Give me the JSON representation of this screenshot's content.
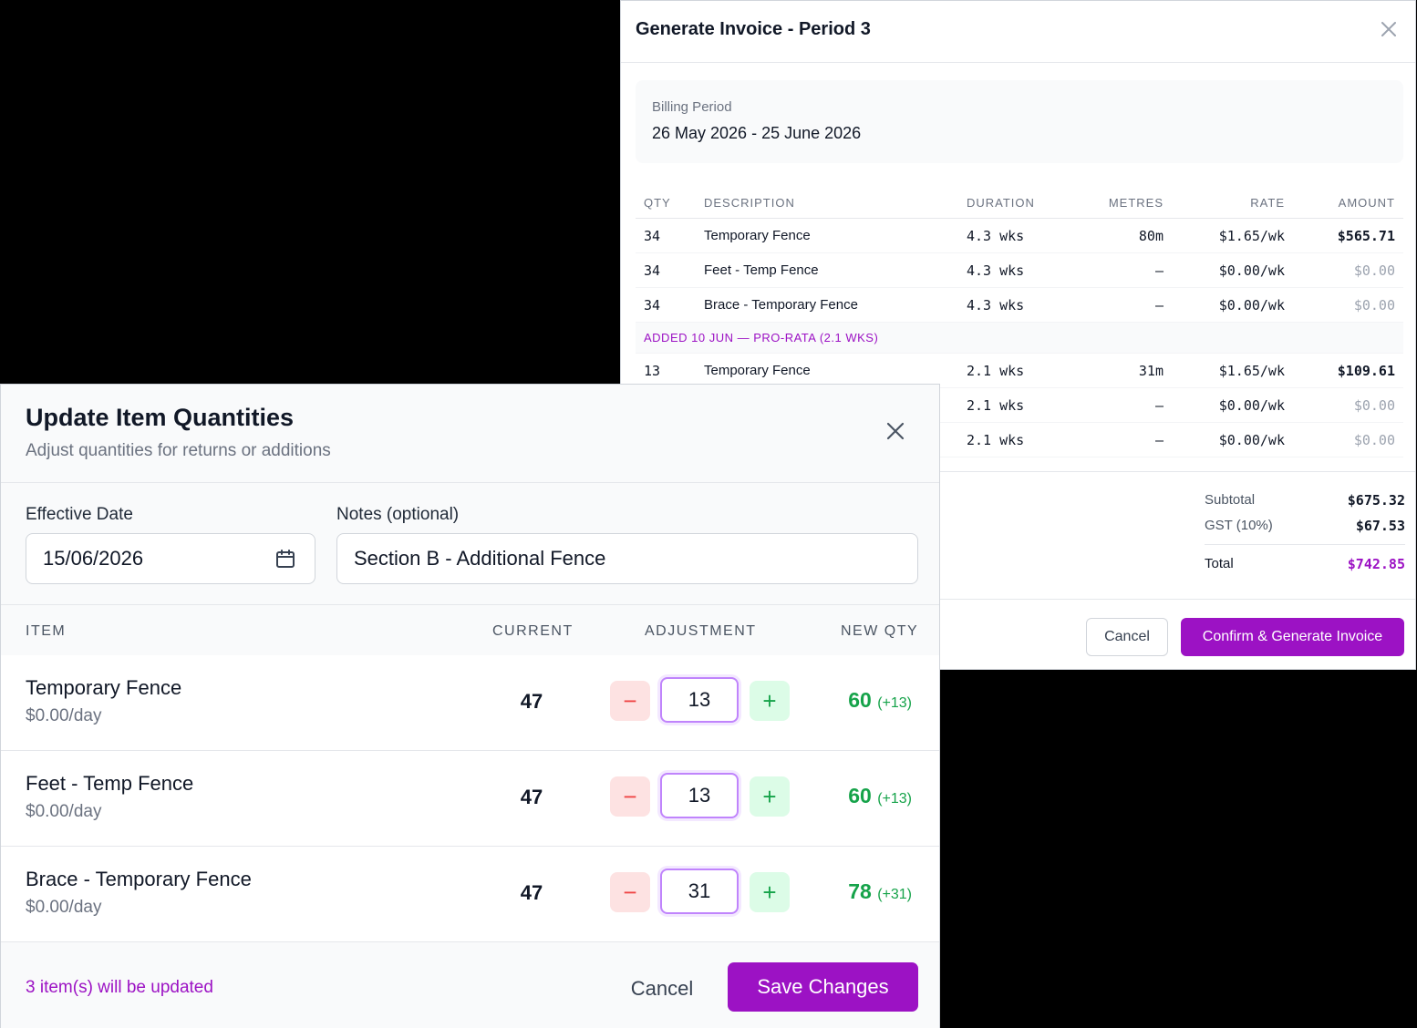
{
  "invoice": {
    "title": "Generate Invoice - Period 3",
    "billing_period_label": "Billing Period",
    "billing_period_value": "26 May 2026 - 25 June 2026",
    "columns": [
      "QTY",
      "DESCRIPTION",
      "DURATION",
      "METRES",
      "RATE",
      "AMOUNT"
    ],
    "rows": [
      {
        "qty": "34",
        "description": "Temporary Fence",
        "duration": "4.3 wks",
        "metres": "80m",
        "rate": "$1.65/wk",
        "amount": "$565.71"
      },
      {
        "qty": "34",
        "description": "Feet - Temp Fence",
        "duration": "4.3 wks",
        "metres": "—",
        "rate": "$0.00/wk",
        "amount": "$0.00"
      },
      {
        "qty": "34",
        "description": "Brace - Temporary Fence",
        "duration": "4.3 wks",
        "metres": "—",
        "rate": "$0.00/wk",
        "amount": "$0.00"
      }
    ],
    "group_label": "ADDED 10 JUN — PRO-RATA (2.1 WKS)",
    "group_rows": [
      {
        "qty": "13",
        "description": "Temporary Fence",
        "duration": "2.1 wks",
        "metres": "31m",
        "rate": "$1.65/wk",
        "amount": "$109.61"
      },
      {
        "qty": "",
        "description": "",
        "duration": "2.1 wks",
        "metres": "—",
        "rate": "$0.00/wk",
        "amount": "$0.00"
      },
      {
        "qty": "",
        "description": "",
        "duration": "2.1 wks",
        "metres": "—",
        "rate": "$0.00/wk",
        "amount": "$0.00"
      }
    ],
    "subtotal_label": "Subtotal",
    "subtotal_value": "$675.32",
    "gst_label": "GST (10%)",
    "gst_value": "$67.53",
    "total_label": "Total",
    "total_value": "$742.85",
    "cancel_label": "Cancel",
    "confirm_label": "Confirm & Generate Invoice",
    "accent_color": "#9c12c4"
  },
  "update": {
    "title": "Update Item Quantities",
    "subtitle": "Adjust quantities for returns or additions",
    "effective_date_label": "Effective Date",
    "effective_date_value": "15/06/2026",
    "notes_label": "Notes (optional)",
    "notes_value": "Section B - Additional Fence",
    "columns": {
      "item": "ITEM",
      "current": "CURRENT",
      "adjustment": "ADJUSTMENT",
      "new_qty": "NEW QTY"
    },
    "items": [
      {
        "name": "Temporary Fence",
        "price": "$0.00/day",
        "current": "47",
        "adjustment": "13",
        "new_qty": "60",
        "delta": "(+13)"
      },
      {
        "name": "Feet - Temp Fence",
        "price": "$0.00/day",
        "current": "47",
        "adjustment": "13",
        "new_qty": "60",
        "delta": "(+13)"
      },
      {
        "name": "Brace - Temporary Fence",
        "price": "$0.00/day",
        "current": "47",
        "adjustment": "31",
        "new_qty": "78",
        "delta": "(+31)"
      }
    ],
    "minus_symbol": "−",
    "plus_symbol": "+",
    "status_text": "3 item(s) will be updated",
    "cancel_label": "Cancel",
    "save_label": "Save Changes",
    "accent_color": "#9c12c4",
    "positive_color": "#16a34a"
  }
}
